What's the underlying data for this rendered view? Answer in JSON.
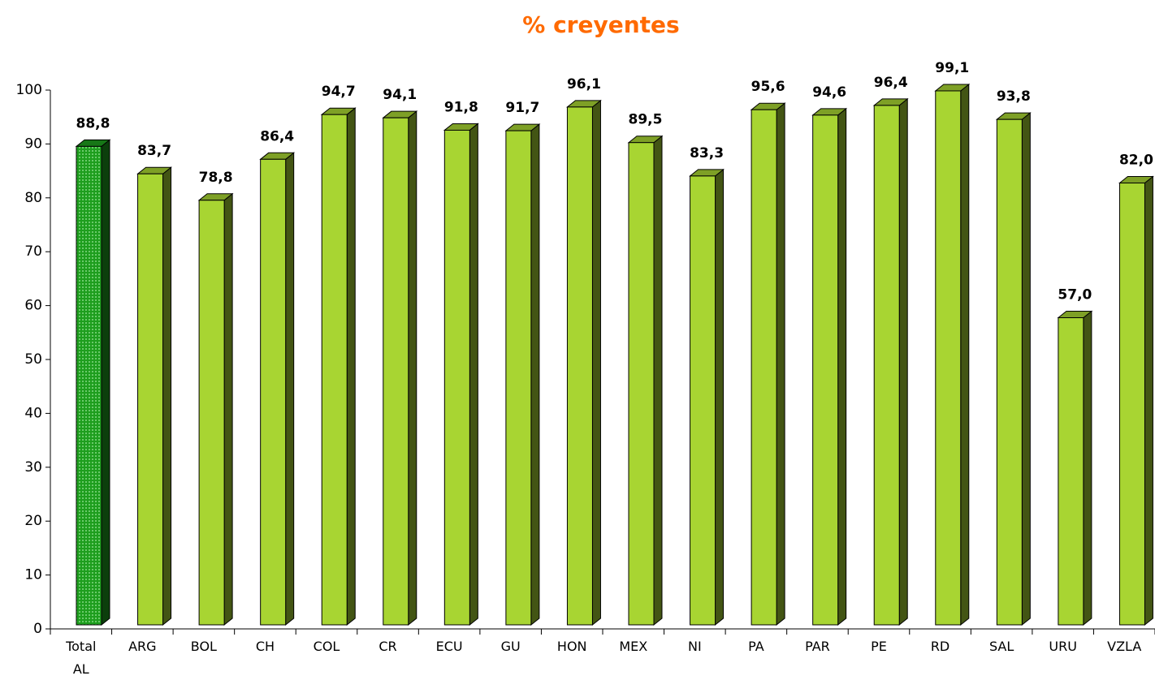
{
  "chart_data": {
    "type": "bar3d",
    "title": "% creyentes",
    "categories": [
      "Total AL",
      "ARG",
      "BOL",
      "CH",
      "COL",
      "CR",
      "ECU",
      "GU",
      "HON",
      "MEX",
      "NI",
      "PA",
      "PAR",
      "PE",
      "RD",
      "SAL",
      "URU",
      "VZLA"
    ],
    "values": [
      88.8,
      83.7,
      78.8,
      86.4,
      94.7,
      94.1,
      91.8,
      91.7,
      96.1,
      89.5,
      83.3,
      95.6,
      94.6,
      96.4,
      99.1,
      93.8,
      57.0,
      82.0
    ],
    "value_labels": [
      "88,8",
      "83,7",
      "78,8",
      "86,4",
      "94,7",
      "94,1",
      "91,8",
      "91,7",
      "96,1",
      "89,5",
      "83,3",
      "95,6",
      "94,6",
      "96,4",
      "99,1",
      "93,8",
      "57,0",
      "82,0"
    ],
    "colors": [
      "#1e9e1e",
      "#a8d532",
      "#a8d532",
      "#a8d532",
      "#a8d532",
      "#a8d532",
      "#a8d532",
      "#a8d532",
      "#a8d532",
      "#a8d532",
      "#a8d532",
      "#a8d532",
      "#a8d532",
      "#a8d532",
      "#a8d532",
      "#a8d532",
      "#a8d532",
      "#a8d532"
    ],
    "ylim": [
      0,
      100
    ],
    "yticks": [
      0,
      10,
      20,
      30,
      40,
      50,
      60,
      70,
      80,
      90,
      100
    ]
  }
}
